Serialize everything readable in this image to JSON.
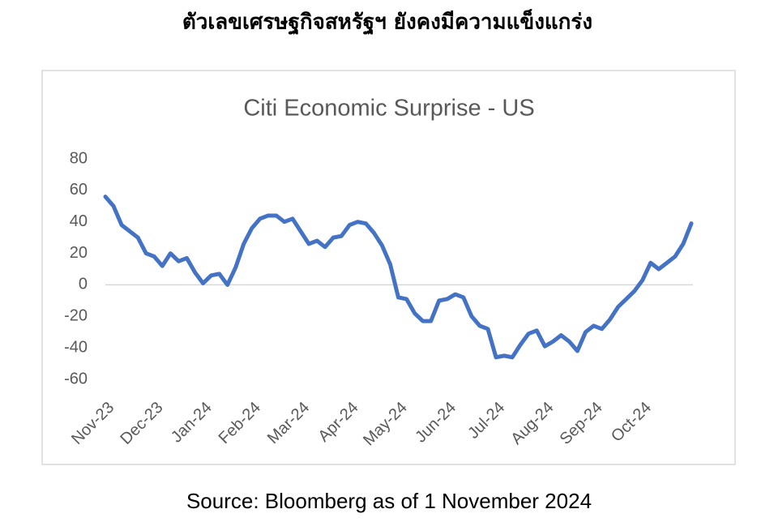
{
  "heading": "ตัวเลขเศรษฐกิจสหรัฐฯ ยังคงมีความแข็งแกร่ง",
  "source": "Source: Bloomberg as of 1 November 2024",
  "chart_data": {
    "type": "line",
    "title": "Citi Economic Surprise - US",
    "x": [
      "Nov-23",
      "Nov-23",
      "Nov-23",
      "Nov-23",
      "Nov-23",
      "Nov-23",
      "Dec-23",
      "Dec-23",
      "Dec-23",
      "Dec-23",
      "Dec-23",
      "Dec-23",
      "Jan-24",
      "Jan-24",
      "Jan-24",
      "Jan-24",
      "Jan-24",
      "Jan-24",
      "Feb-24",
      "Feb-24",
      "Feb-24",
      "Feb-24",
      "Feb-24",
      "Feb-24",
      "Mar-24",
      "Mar-24",
      "Mar-24",
      "Mar-24",
      "Mar-24",
      "Mar-24",
      "Apr-24",
      "Apr-24",
      "Apr-24",
      "Apr-24",
      "Apr-24",
      "Apr-24",
      "May-24",
      "May-24",
      "May-24",
      "May-24",
      "May-24",
      "May-24",
      "Jun-24",
      "Jun-24",
      "Jun-24",
      "Jun-24",
      "Jun-24",
      "Jun-24",
      "Jul-24",
      "Jul-24",
      "Jul-24",
      "Jul-24",
      "Jul-24",
      "Jul-24",
      "Aug-24",
      "Aug-24",
      "Aug-24",
      "Aug-24",
      "Aug-24",
      "Aug-24",
      "Sep-24",
      "Sep-24",
      "Sep-24",
      "Sep-24",
      "Sep-24",
      "Sep-24",
      "Oct-24",
      "Oct-24",
      "Oct-24",
      "Oct-24",
      "Oct-24",
      "Oct-24",
      "Oct-24"
    ],
    "series": [
      {
        "name": "Citi Economic Surprise - US",
        "color": "#4472c4",
        "values": [
          56,
          50,
          38,
          34,
          30,
          20,
          18,
          12,
          20,
          15,
          17,
          8,
          1,
          6,
          7,
          0,
          11,
          26,
          36,
          42,
          44,
          44,
          40,
          42,
          34,
          26,
          28,
          24,
          30,
          31,
          38,
          40,
          39,
          33,
          25,
          13,
          -8,
          -9,
          -18,
          -23,
          -23,
          -10,
          -9,
          -6,
          -8,
          -20,
          -26,
          -28,
          -46,
          -45,
          -46,
          -38,
          -31,
          -29,
          -39,
          -36,
          -32,
          -36,
          -42,
          -30,
          -26,
          -28,
          -22,
          -14,
          -9,
          -4,
          3,
          14,
          10,
          14,
          18,
          26,
          39
        ]
      }
    ],
    "xticks": [
      "Nov-23",
      "Dec-23",
      "Jan-24",
      "Feb-24",
      "Mar-24",
      "Apr-24",
      "May-24",
      "Jun-24",
      "Jul-24",
      "Aug-24",
      "Sep-24",
      "Oct-24"
    ],
    "ylim": [
      -60,
      80
    ],
    "yticks": [
      -60,
      -40,
      -20,
      0,
      20,
      40,
      60,
      80
    ],
    "grid": false
  }
}
